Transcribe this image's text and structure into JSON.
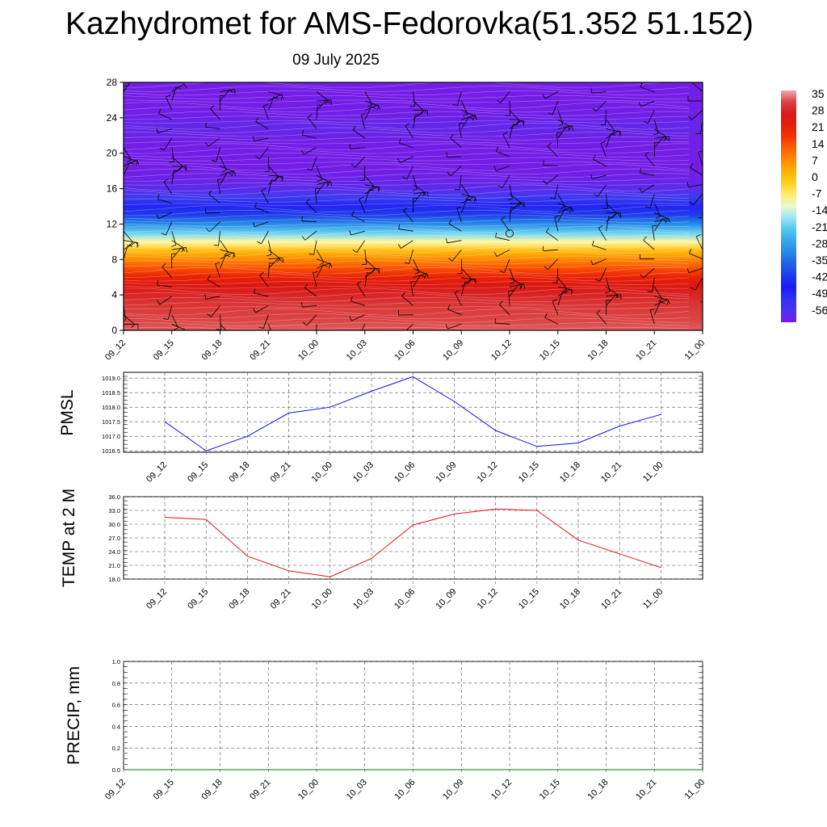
{
  "title": "Kazhydromet for AMS-Fedorovka(51.352 51.152)",
  "subtitle": "09 July 2025",
  "colorbar_labels": [
    "35",
    "28",
    "21",
    "14",
    "7",
    "0",
    "-7",
    "-14",
    "-21",
    "-28",
    "-35",
    "-42",
    "-49",
    "-56"
  ],
  "colors": {
    "pmsl_line": "#1010e0",
    "temp_line": "#e01010",
    "precip_line": "#0a7a0a",
    "grid": "#555555"
  },
  "chart_data": [
    {
      "type": "heatmap",
      "description_of_levels": "temperature by height level with wind barbs",
      "x_ticks": [
        "09_12",
        "09_15",
        "09_18",
        "09_21",
        "10_00",
        "10_03",
        "10_06",
        "10_09",
        "10_12",
        "10_15",
        "10_18",
        "10_21",
        "11_00"
      ],
      "y_ticks": [
        0,
        4,
        8,
        12,
        16,
        20,
        24,
        28
      ],
      "ylim": [
        0,
        28
      ],
      "colorbar_range": [
        -56,
        35
      ],
      "level_values": [
        32,
        31,
        30,
        29,
        27,
        24,
        20,
        14,
        8,
        1,
        -8,
        -18,
        -28,
        -37,
        -44,
        -49,
        -53,
        -55,
        -56,
        -56,
        -56,
        -56,
        -55,
        -54,
        -55,
        -56,
        -57,
        -58,
        -58
      ]
    },
    {
      "type": "line",
      "ylabel": "PMSL",
      "x": [
        "09_12",
        "09_15",
        "09_18",
        "09_21",
        "10_00",
        "10_03",
        "10_06",
        "10_09",
        "10_12",
        "10_15",
        "10_18",
        "10_21",
        "11_00"
      ],
      "y": [
        1017.5,
        1016.5,
        1017.0,
        1017.8,
        1018.0,
        1018.55,
        1019.05,
        1018.2,
        1017.2,
        1016.65,
        1016.77,
        1017.35,
        1017.75
      ],
      "yticks": [
        1016.5,
        1017.0,
        1017.5,
        1018.0,
        1018.5,
        1019.0
      ],
      "ylim": [
        1016.45,
        1019.2
      ]
    },
    {
      "type": "line",
      "ylabel": "TEMP at 2 M",
      "x": [
        "09_12",
        "09_15",
        "09_18",
        "09_21",
        "10_00",
        "10_03",
        "10_06",
        "10_09",
        "10_12",
        "10_15",
        "10_18",
        "10_21",
        "11_00"
      ],
      "y": [
        31.5,
        31.0,
        23.0,
        19.8,
        18.5,
        22.5,
        29.8,
        32.2,
        33.3,
        33.0,
        26.5,
        23.5,
        20.5
      ],
      "yticks": [
        18.0,
        21.0,
        24.0,
        27.0,
        30.0,
        33.0,
        36.0
      ],
      "ylim": [
        18.0,
        36.0
      ]
    },
    {
      "type": "line",
      "ylabel": "PRECIP, mm",
      "x": [
        "09_12",
        "09_15",
        "09_18",
        "09_21",
        "10_00",
        "10_03",
        "10_06",
        "10_09",
        "10_12",
        "10_15",
        "10_18",
        "10_21",
        "11_00"
      ],
      "y": [
        0,
        0,
        0,
        0,
        0,
        0,
        0,
        0,
        0,
        0,
        0,
        0,
        0
      ],
      "yticks": [
        0.0,
        0.2,
        0.4,
        0.6,
        0.8,
        1.0
      ],
      "ylim": [
        0.0,
        1.0
      ]
    }
  ]
}
